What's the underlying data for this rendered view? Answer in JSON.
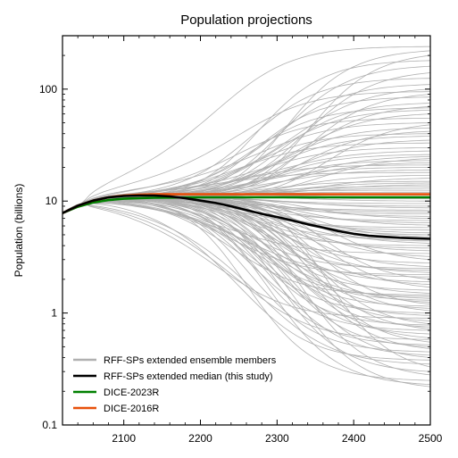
{
  "chart_data": {
    "type": "line",
    "title": "Population projections",
    "xlabel": "",
    "ylabel": "Population (billions)",
    "xlim": [
      2020,
      2500
    ],
    "ylim": [
      0.1,
      300
    ],
    "yscale": "log",
    "x_ticks": [
      2100,
      2200,
      2300,
      2400,
      2500
    ],
    "y_ticks": [
      0.1,
      1,
      10,
      100
    ],
    "y_tick_labels": [
      "0.1",
      "1",
      "10",
      "100"
    ],
    "legend": {
      "placement": "lower-left",
      "entries": [
        {
          "label": "RFF-SPs extended ensemble members",
          "color": "#b0b0b0"
        },
        {
          "label": "RFF-SPs extended median (this study)",
          "color": "#000000"
        },
        {
          "label": "DICE-2023R",
          "color": "#008000"
        },
        {
          "label": "DICE-2016R",
          "color": "#e8500a"
        }
      ]
    },
    "ensemble_final_values_2500": [
      240,
      220,
      200,
      180,
      160,
      140,
      125,
      110,
      100,
      95,
      90,
      85,
      75,
      70,
      68,
      65,
      60,
      55,
      50,
      48,
      45,
      42,
      40,
      38,
      35,
      33,
      30,
      28,
      26,
      25,
      24,
      23,
      22,
      21,
      20,
      19,
      18,
      17,
      16,
      15,
      14.5,
      14,
      13.5,
      13,
      12.5,
      12,
      11.5,
      11,
      10.5,
      10,
      9.5,
      9,
      8.7,
      8.3,
      8,
      7.7,
      7.3,
      7,
      6.7,
      6.4,
      6.1,
      5.8,
      5.5,
      5.2,
      5,
      4.8,
      4.6,
      4.4,
      4.2,
      4,
      3.8,
      3.6,
      3.4,
      3.2,
      3,
      2.8,
      2.6,
      2.5,
      2.4,
      2.3,
      2.2,
      2.1,
      2,
      1.9,
      1.8,
      1.7,
      1.6,
      1.5,
      1.45,
      1.4,
      1.35,
      1.3,
      1.25,
      1.2,
      1.15,
      1.1,
      1.05,
      1,
      0.95,
      0.9,
      0.85,
      0.8,
      0.78,
      0.75,
      0.72,
      0.7,
      0.65,
      0.6,
      0.58,
      0.55,
      0.52,
      0.5,
      0.48,
      0.45,
      0.42,
      0.4,
      0.38,
      0.35,
      0.33,
      0.3,
      0.28,
      0.25,
      0.23,
      0.22
    ],
    "series": [
      {
        "name": "RFF-SPs extended median (this study)",
        "color": "#000000",
        "x": [
          2020,
          2040,
          2060,
          2080,
          2100,
          2120,
          2140,
          2160,
          2180,
          2200,
          2220,
          2240,
          2260,
          2280,
          2300,
          2320,
          2340,
          2360,
          2380,
          2400,
          2420,
          2440,
          2460,
          2480,
          2500
        ],
        "y": [
          7.8,
          9.1,
          10.1,
          10.8,
          11.1,
          11.2,
          11.2,
          11.0,
          10.6,
          10.1,
          9.6,
          9.0,
          8.3,
          7.7,
          7.2,
          6.7,
          6.2,
          5.8,
          5.4,
          5.1,
          4.9,
          4.8,
          4.7,
          4.65,
          4.6
        ]
      },
      {
        "name": "DICE-2023R",
        "color": "#008000",
        "x": [
          2020,
          2040,
          2060,
          2080,
          2100,
          2120,
          2140,
          2160,
          2200,
          2300,
          2400,
          2500
        ],
        "y": [
          7.8,
          8.9,
          9.7,
          10.2,
          10.5,
          10.6,
          10.7,
          10.75,
          10.8,
          10.8,
          10.8,
          10.8
        ]
      },
      {
        "name": "DICE-2016R",
        "color": "#e8500a",
        "x": [
          2020,
          2040,
          2060,
          2080,
          2100,
          2120,
          2140,
          2160,
          2200,
          2300,
          2400,
          2500
        ],
        "y": [
          7.8,
          9.1,
          10.1,
          10.8,
          11.2,
          11.4,
          11.5,
          11.5,
          11.5,
          11.5,
          11.5,
          11.5
        ]
      }
    ]
  }
}
